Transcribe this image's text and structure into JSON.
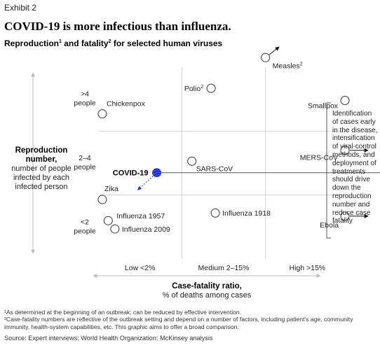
{
  "exhibit": "Exhibit 2",
  "title": "COVID-19 is more infectious than influenza.",
  "subtitle_parts": [
    "Reproduction",
    "1",
    " and fatality",
    "2",
    " for selected human viruses"
  ],
  "y_axis": {
    "title": "Reproduction number,",
    "subtitle": "number of people infected by each infected person"
  },
  "x_axis": {
    "title": "Case-fatality ratio,",
    "subtitle": "% of deaths among cases"
  },
  "callout": "Identification of cases early in the disease, intensification of viral-control methods, and deployment of treatments should drive down the reproduction number and reduce case fatality",
  "footnotes": [
    "¹As determined at the beginning of an outbreak; can be reduced by effective intervention.",
    "²Case-fatality numbers are reflective of the outbreak setting and depend on a number of factors, including patient's age, community immunity, health-system capabilities, etc. This graphic aims to offer a broad comparison."
  ],
  "source": "Source: Expert interviews; World Health Organization; McKinsey analysis",
  "colors": {
    "highlight": "#2a3ce0",
    "grid": "#d2d2d2",
    "marker_stroke": "#333333",
    "axis_arrow": "#bbbbbb"
  },
  "chart_data": {
    "type": "scatter",
    "x_categories": [
      "Low <2%",
      "Medium 2–15%",
      "High >15%"
    ],
    "y_categories": [
      {
        "lines": [
          "<2",
          "people"
        ]
      },
      {
        "lines": [
          "2–4",
          "people"
        ]
      },
      {
        "lines": [
          ">4",
          "people"
        ]
      }
    ],
    "points": [
      {
        "label": "Measles",
        "sup": "2",
        "x": 2.0,
        "y": 3.15,
        "arrow": "up-right"
      },
      {
        "label": "Polio",
        "sup": "2",
        "x": 1.35,
        "y": 2.67
      },
      {
        "label": "Chickenpox",
        "x": 0.05,
        "y": 2.27
      },
      {
        "label": "Smallpox",
        "x": 2.95,
        "y": 2.48
      },
      {
        "label": "SARS-CoV",
        "x": 1.12,
        "y": 1.53
      },
      {
        "label": "MERS-CoV",
        "x": 2.95,
        "y": 1.7,
        "arrow": "right"
      },
      {
        "label": "COVID-19",
        "x": 0.7,
        "y": 1.35,
        "highlight": true,
        "arrow": "down-left"
      },
      {
        "label": "Zika",
        "x": 0.05,
        "y": 0.93
      },
      {
        "label": "Influenza 1918",
        "x": 1.4,
        "y": 0.72
      },
      {
        "label": "Influenza 1957",
        "x": 0.12,
        "y": 0.6
      },
      {
        "label": "Influenza 2009",
        "x": 0.2,
        "y": 0.47
      },
      {
        "label": "Ebola",
        "x": 2.95,
        "y": 0.67,
        "arrow": "right"
      }
    ],
    "xlim": [
      0,
      3
    ],
    "ylim": [
      0,
      3
    ],
    "grid": true,
    "highlight_line": {
      "from": "COVID-19",
      "to_x": 3.4
    }
  }
}
